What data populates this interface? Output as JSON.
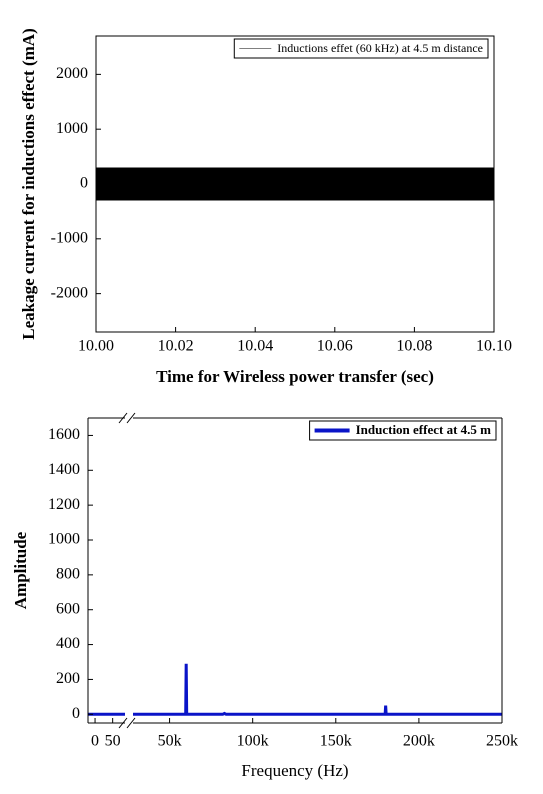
{
  "chart_data": [
    {
      "type": "band",
      "xlabel": "Time for Wireless power transfer (sec)",
      "ylabel": "Leakage current for inductions effect (mA)",
      "xlim": [
        10.0,
        10.1
      ],
      "xticks": [
        {
          "value": 10.0,
          "label": "10.00"
        },
        {
          "value": 10.02,
          "label": "10.02"
        },
        {
          "value": 10.04,
          "label": "10.04"
        },
        {
          "value": 10.06,
          "label": "10.06"
        },
        {
          "value": 10.08,
          "label": "10.08"
        },
        {
          "value": 10.1,
          "label": "10.10"
        }
      ],
      "ylim": [
        -2700,
        2700
      ],
      "yticks": [
        -2000,
        -1000,
        0,
        1000,
        2000
      ],
      "legend": "top-right",
      "series": [
        {
          "name": "Inductions effet (60 kHz) at 4.5 m distance",
          "color": "#000000",
          "legend_color": "#808080",
          "x": [
            10.0,
            10.1
          ],
          "upper": [
            300,
            300
          ],
          "lower": [
            -300,
            -300
          ]
        }
      ]
    },
    {
      "type": "line",
      "xlabel": "Frequency (Hz)",
      "ylabel": "Amplitude",
      "xlim": [
        -20,
        250000
      ],
      "xbreak": [
        85,
        28000
      ],
      "xticks": [
        0,
        50,
        {
          "value": 50000,
          "label": "50k"
        },
        {
          "value": 100000,
          "label": "100k"
        },
        {
          "value": 150000,
          "label": "150k"
        },
        {
          "value": 200000,
          "label": "200k"
        },
        {
          "value": 250000,
          "label": "250k"
        }
      ],
      "ylim": [
        -50,
        1700
      ],
      "yticks": [
        0,
        200,
        400,
        600,
        800,
        1000,
        1200,
        1400,
        1600
      ],
      "legend": "top-right",
      "series": [
        {
          "name": "Induction effect at 4.5 m",
          "color": "#0a14c8",
          "x": [
            -20,
            85,
            28000,
            59700,
            60000,
            60300,
            82000,
            83000,
            84000,
            179700,
            180000,
            180300,
            250000
          ],
          "values": [
            0,
            0,
            0,
            0,
            290,
            0,
            0,
            5,
            0,
            0,
            50,
            0,
            0
          ]
        }
      ]
    }
  ]
}
